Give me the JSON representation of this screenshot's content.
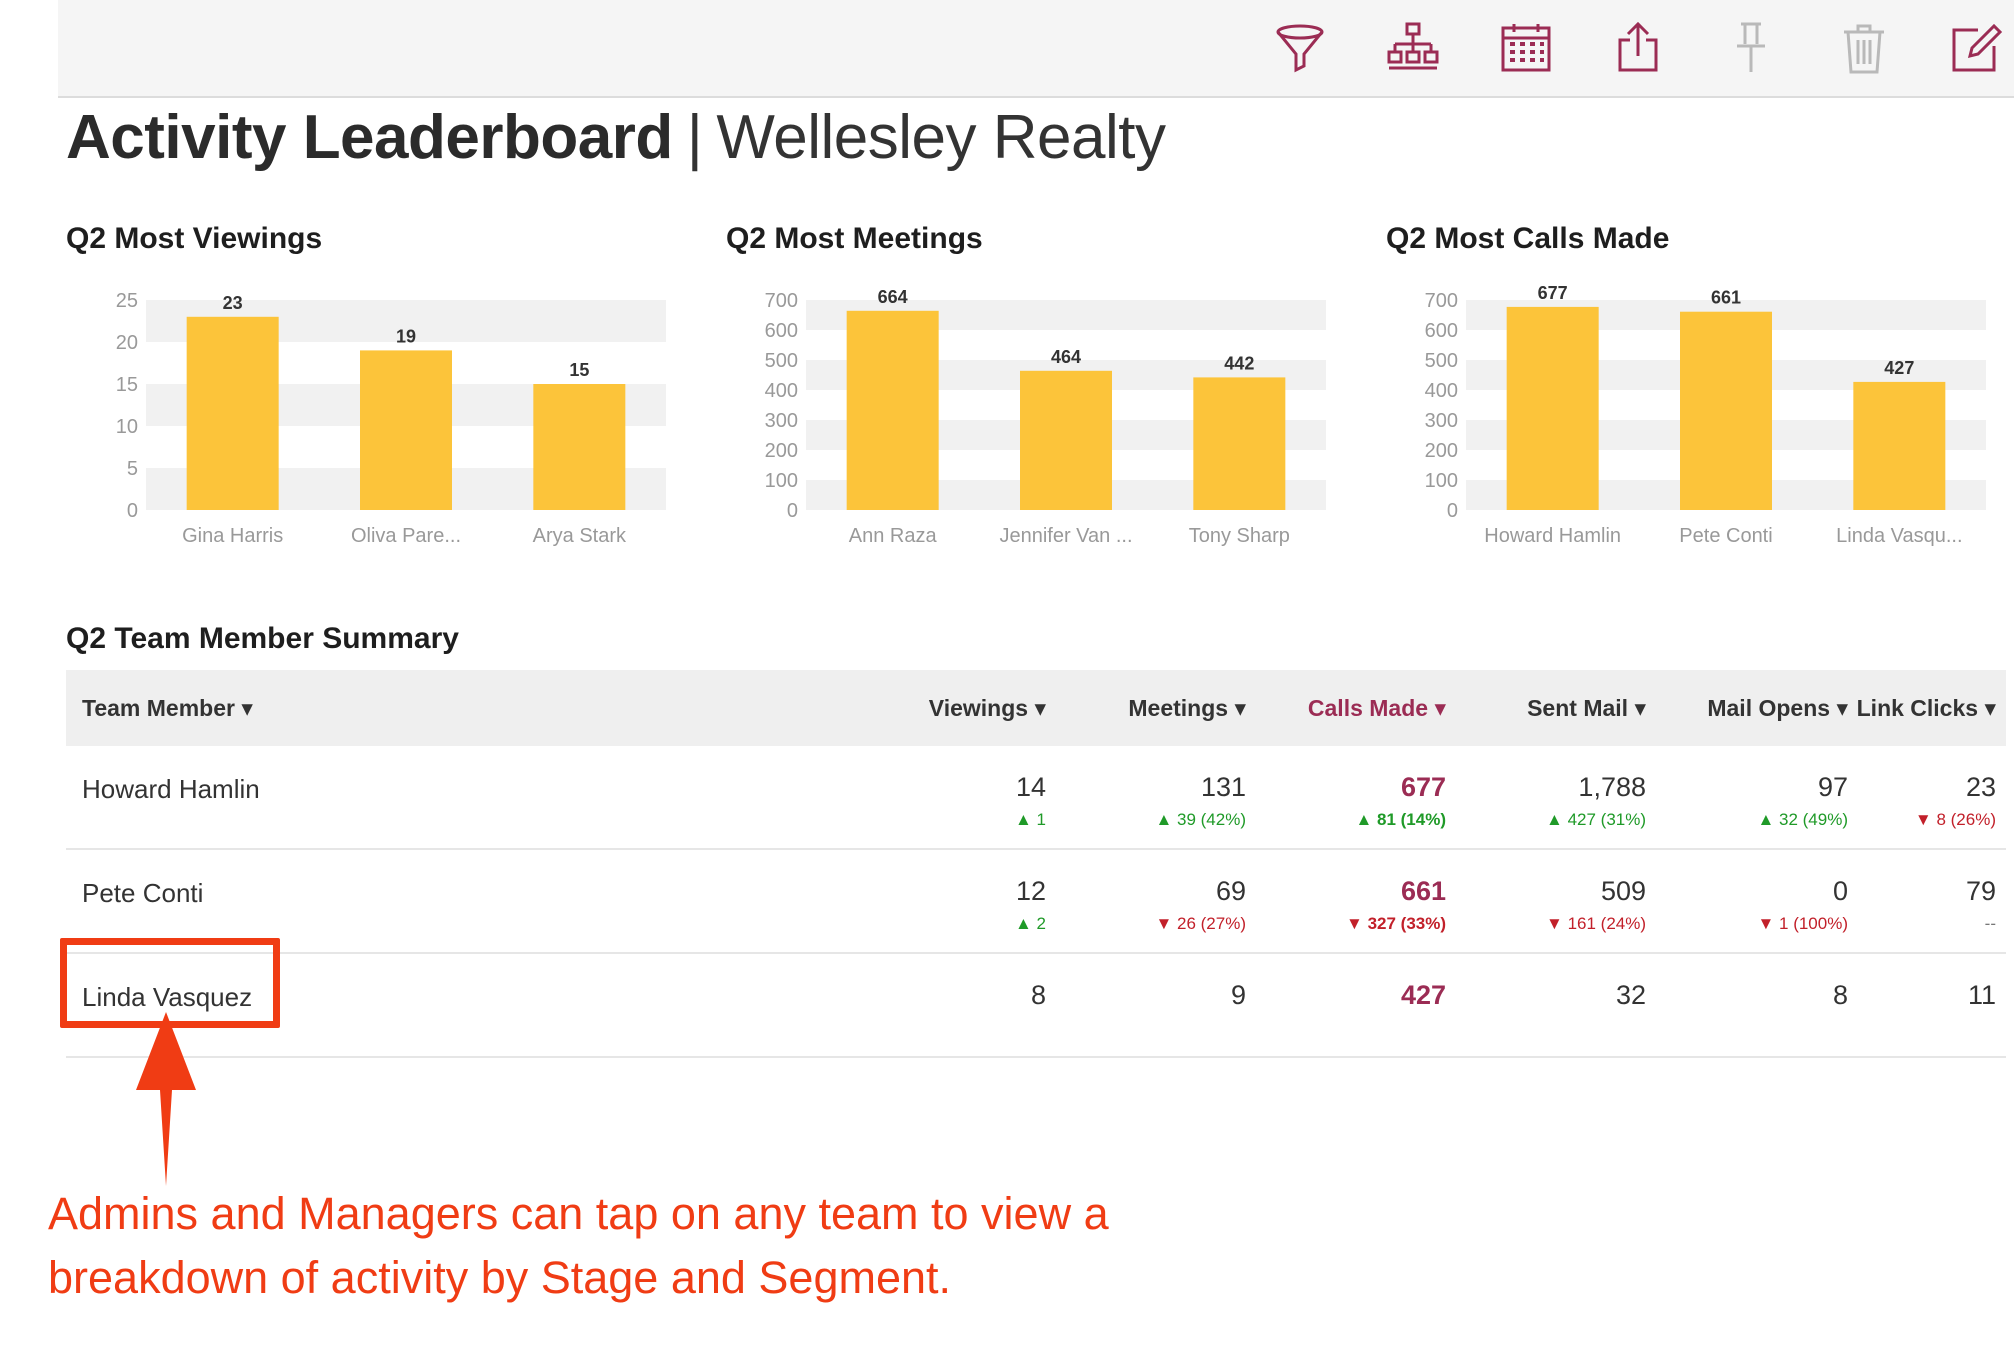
{
  "toolbar": {
    "icons": [
      "filter-icon",
      "hierarchy-icon",
      "calendar-icon",
      "share-icon",
      "pin-icon",
      "trash-icon",
      "edit-icon"
    ],
    "accent": "#9b2c54"
  },
  "header": {
    "title_bold": "Activity Leaderboard",
    "separator": "|",
    "org": "Wellesley Realty"
  },
  "chart_data": [
    {
      "type": "bar",
      "title": "Q2 Most Viewings",
      "categories": [
        "Gina Harris",
        "Oliva Pare...",
        "Arya Stark"
      ],
      "values": [
        23,
        19,
        15
      ],
      "ylim": [
        0,
        25
      ],
      "yticks": [
        "0",
        "5",
        "10",
        "15",
        "20",
        "25"
      ],
      "color": "#fcc43a"
    },
    {
      "type": "bar",
      "title": "Q2 Most Meetings",
      "categories": [
        "Ann Raza",
        "Jennifer Van ...",
        "Tony Sharp"
      ],
      "values": [
        664,
        464,
        442
      ],
      "ylim": [
        0,
        700
      ],
      "yticks": [
        "0",
        "100",
        "200",
        "300",
        "400",
        "500",
        "600",
        "700"
      ],
      "color": "#fcc43a"
    },
    {
      "type": "bar",
      "title": "Q2 Most Calls Made",
      "categories": [
        "Howard Hamlin",
        "Pete Conti",
        "Linda Vasqu..."
      ],
      "values": [
        677,
        661,
        427
      ],
      "ylim": [
        0,
        700
      ],
      "yticks": [
        "0",
        "100",
        "200",
        "300",
        "400",
        "500",
        "600",
        "700"
      ],
      "color": "#fcc43a"
    }
  ],
  "summary": {
    "title": "Q2 Team Member Summary",
    "columns": {
      "member": "Team Member ▾",
      "viewings": "Viewings ▾",
      "meetings": "Meetings ▾",
      "calls": "Calls Made ▾",
      "sent": "Sent Mail ▾",
      "opens": "Mail Opens ▾",
      "clicks": "Link Clicks ▾"
    },
    "rows": [
      {
        "name": "Howard Hamlin",
        "viewings": {
          "value": "14",
          "change": "▲ 1",
          "dir": "up"
        },
        "meetings": {
          "value": "131",
          "change": "▲ 39 (42%)",
          "dir": "up"
        },
        "calls": {
          "value": "677",
          "change": "▲ 81 (14%)",
          "dir": "up"
        },
        "sent": {
          "value": "1,788",
          "change": "▲ 427 (31%)",
          "dir": "up"
        },
        "opens": {
          "value": "97",
          "change": "▲ 32 (49%)",
          "dir": "up"
        },
        "clicks": {
          "value": "23",
          "change": "▼ 8 (26%)",
          "dir": "down"
        }
      },
      {
        "name": "Pete Conti",
        "viewings": {
          "value": "12",
          "change": "▲ 2",
          "dir": "up"
        },
        "meetings": {
          "value": "69",
          "change": "▼ 26 (27%)",
          "dir": "down"
        },
        "calls": {
          "value": "661",
          "change": "▼ 327 (33%)",
          "dir": "down"
        },
        "sent": {
          "value": "509",
          "change": "▼ 161 (24%)",
          "dir": "down"
        },
        "opens": {
          "value": "0",
          "change": "▼ 1 (100%)",
          "dir": "down"
        },
        "clicks": {
          "value": "79",
          "change": "--",
          "dir": "neutral"
        }
      },
      {
        "name": "Linda Vasquez",
        "viewings": {
          "value": "8",
          "change": "",
          "dir": "neutral"
        },
        "meetings": {
          "value": "9",
          "change": "",
          "dir": "neutral"
        },
        "calls": {
          "value": "427",
          "change": "",
          "dir": "neutral"
        },
        "sent": {
          "value": "32",
          "change": "",
          "dir": "neutral"
        },
        "opens": {
          "value": "8",
          "change": "",
          "dir": "neutral"
        },
        "clicks": {
          "value": "11",
          "change": "",
          "dir": "neutral"
        }
      }
    ]
  },
  "annotation": {
    "text": "Admins and Managers can tap on any team to view a breakdown of activity by Stage and Segment.",
    "color": "#f03c14"
  }
}
